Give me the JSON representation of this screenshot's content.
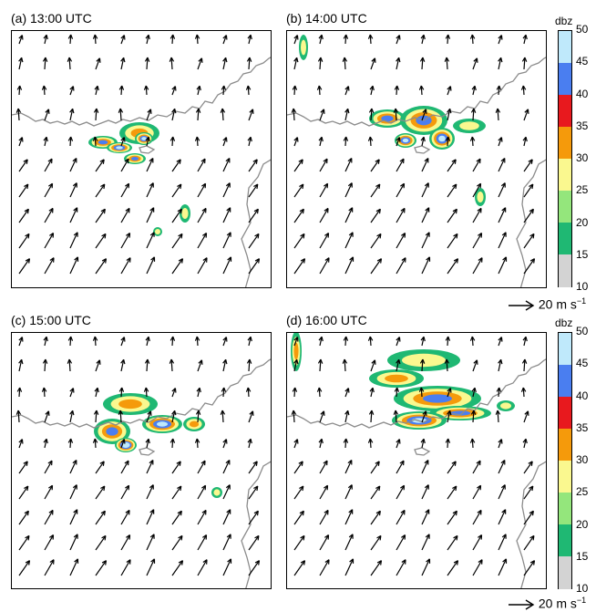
{
  "panels": [
    {
      "label": "(a) 13:00 UTC"
    },
    {
      "label": "(b) 14:00 UTC"
    },
    {
      "label": "(c) 15:00 UTC"
    },
    {
      "label": "(d) 16:00 UTC"
    }
  ],
  "colorbar": {
    "unit": "dbz",
    "ticks": [
      "50",
      "45",
      "40",
      "35",
      "30",
      "25",
      "20",
      "15",
      "10"
    ],
    "colors": [
      "#bfe9fb",
      "#4a7ef0",
      "#e8191e",
      "#f59a0b",
      "#faf88f",
      "#94e67c",
      "#1fb873",
      "#d3d3d3"
    ]
  },
  "reference_vector": {
    "value": "20",
    "unit": "m s",
    "exponent": "−1"
  },
  "colors": {
    "coastline": "#8c8c8c",
    "arrow": "#000000"
  }
}
